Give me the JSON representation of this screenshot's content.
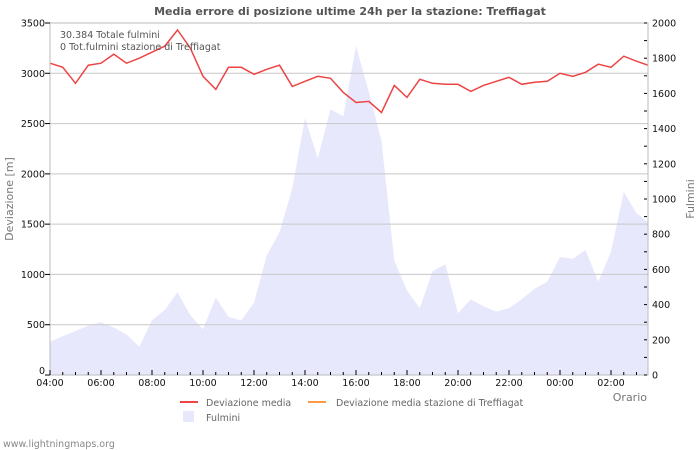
{
  "chart_data": {
    "type": "line",
    "title": "Media errore di posizione ultime 24h per la stazione: Treffiagat",
    "xlabel": "Orario",
    "ylabel": "Deviazione  [m]",
    "y2label": "Fulmini",
    "ylim": [
      0,
      3500
    ],
    "y2lim": [
      0,
      2000
    ],
    "yticks": [
      0,
      500,
      1000,
      1500,
      2000,
      2500,
      3000,
      3500
    ],
    "y2ticks": [
      0,
      200,
      400,
      600,
      800,
      1000,
      1200,
      1400,
      1600,
      1800,
      2000
    ],
    "xticks": [
      "04:00",
      "06:00",
      "08:00",
      "10:00",
      "12:00",
      "14:00",
      "16:00",
      "18:00",
      "20:00",
      "22:00",
      "00:00",
      "02:00"
    ],
    "grid": true,
    "legend_position": "bottom",
    "annotations": [
      "30.384 Totale fulmini",
      "0 Tot.fulmini stazione di Treffiagat"
    ],
    "x_hours_from_start": [
      0,
      0.5,
      1,
      1.5,
      2,
      2.5,
      3,
      3.5,
      4,
      4.5,
      5,
      5.5,
      6,
      6.5,
      7,
      7.5,
      8,
      8.5,
      9,
      9.5,
      10,
      10.5,
      11,
      11.5,
      12,
      12.5,
      13,
      13.5,
      14,
      14.5,
      15,
      15.5,
      16,
      16.5,
      17,
      17.5,
      18,
      18.5,
      19,
      19.5,
      20,
      20.5,
      21,
      21.5,
      22,
      22.5,
      23,
      23.5
    ],
    "series": [
      {
        "name": "Deviazione media",
        "axis": "left",
        "type": "line",
        "color": "#ee4444",
        "values": [
          3100,
          3060,
          2900,
          3080,
          3100,
          3190,
          3100,
          3150,
          3210,
          3270,
          3430,
          3250,
          2970,
          2840,
          3060,
          3060,
          2990,
          3040,
          3080,
          2870,
          2920,
          2970,
          2950,
          2810,
          2710,
          2720,
          2610,
          2880,
          2760,
          2940,
          2900,
          2890,
          2890,
          2820,
          2880,
          2920,
          2960,
          2890,
          2910,
          2920,
          3000,
          2970,
          3010,
          3090,
          3060,
          3170,
          3120,
          3080
        ]
      },
      {
        "name": "Deviazione media stazione di Treffiagat",
        "axis": "left",
        "type": "line",
        "color": "#ff9944",
        "values": []
      },
      {
        "name": "Fulmini",
        "axis": "right",
        "type": "area",
        "color": "#e8e8fc",
        "values": [
          190,
          220,
          250,
          280,
          300,
          270,
          230,
          160,
          310,
          370,
          470,
          340,
          260,
          440,
          330,
          310,
          410,
          680,
          810,
          1060,
          1460,
          1230,
          1510,
          1470,
          1870,
          1610,
          1330,
          650,
          480,
          380,
          590,
          630,
          350,
          430,
          390,
          360,
          380,
          430,
          490,
          530,
          670,
          660,
          710,
          530,
          700,
          1040,
          920,
          870
        ]
      }
    ]
  },
  "header": {
    "title": "Media errore di posizione ultime 24h per la stazione: Treffiagat"
  },
  "info": {
    "total_strikes": "30.384 Totale fulmini",
    "station_strikes": "0 Tot.fulmini stazione di Treffiagat"
  },
  "axes": {
    "left_label": "Deviazione  [m]",
    "right_label": "Fulmini",
    "x_label": "Orario"
  },
  "legend": {
    "items": [
      {
        "label": "Deviazione media",
        "color": "#ee4444"
      },
      {
        "label": "Deviazione media stazione di Treffiagat",
        "color": "#ff9944"
      },
      {
        "label": "Fulmini",
        "color": "#e8e8fc"
      }
    ]
  },
  "footer": {
    "source": "www.lightningmaps.org"
  }
}
